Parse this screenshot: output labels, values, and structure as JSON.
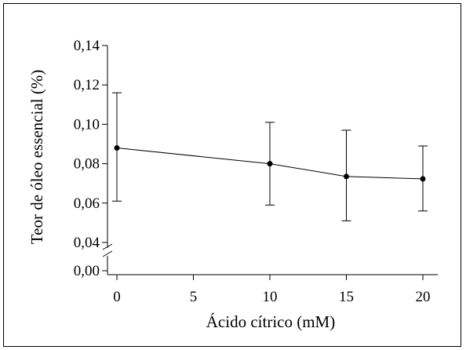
{
  "chart_data": {
    "type": "line",
    "title": "",
    "xlabel": "Ácido cítrico (mM)",
    "ylabel": "Teor de óleo essencial (%)",
    "x": [
      0,
      10,
      15,
      20
    ],
    "series": [
      {
        "name": "",
        "values": [
          0.088,
          0.08,
          0.0735,
          0.0723
        ],
        "err_low": [
          0.061,
          0.059,
          0.051,
          0.056
        ],
        "err_high": [
          0.116,
          0.101,
          0.097,
          0.089
        ]
      }
    ],
    "xlim": [
      0,
      20
    ],
    "ylim": [
      0.0,
      0.14
    ],
    "y_break": true,
    "x_ticks": [
      0,
      5,
      10,
      15,
      20
    ],
    "x_tick_labels": [
      "0",
      "5",
      "10",
      "15",
      "20"
    ],
    "y_ticks": [
      0.0,
      0.04,
      0.06,
      0.08,
      0.1,
      0.12,
      0.14
    ],
    "y_tick_labels": [
      "0,00",
      "0,04",
      "0,06",
      "0,08",
      "0,10",
      "0,12",
      "0,14"
    ],
    "grid": false,
    "legend": "none",
    "colors": {
      "line": "#000000",
      "marker": "#000000"
    }
  }
}
